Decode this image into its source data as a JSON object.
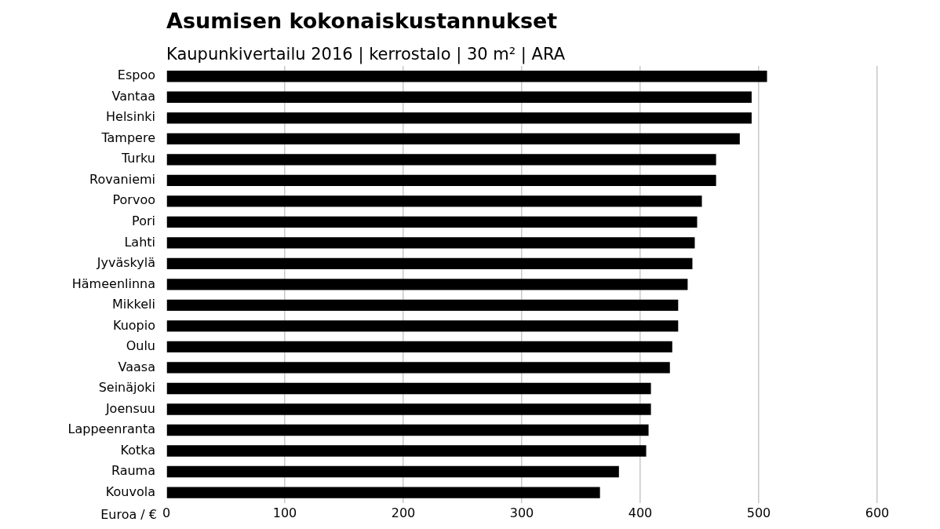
{
  "chart_data": {
    "type": "bar",
    "orientation": "horizontal",
    "title": "Asumisen kokonaiskustannukset",
    "subtitle": "Kaupunkivertailu 2016 | kerrostalo | 30 m² | ARA",
    "xlabel": "Euroa / €",
    "categories": [
      "Espoo",
      "Vantaa",
      "Helsinki",
      "Tampere",
      "Turku",
      "Rovaniemi",
      "Porvoo",
      "Pori",
      "Lahti",
      "Jyväskylä",
      "Hämeenlinna",
      "Mikkeli",
      "Kuopio",
      "Oulu",
      "Vaasa",
      "Seinäjoki",
      "Joensuu",
      "Lappeenranta",
      "Kotka",
      "Rauma",
      "Kouvola"
    ],
    "values": [
      507,
      494,
      494,
      484,
      464,
      464,
      452,
      448,
      446,
      444,
      440,
      432,
      432,
      427,
      425,
      409,
      409,
      407,
      405,
      382,
      366
    ],
    "color": "#000000",
    "xlim": [
      0,
      600
    ],
    "xticks": [
      0,
      100,
      200,
      300,
      400,
      500,
      600
    ],
    "grid": "x",
    "legend": false
  }
}
